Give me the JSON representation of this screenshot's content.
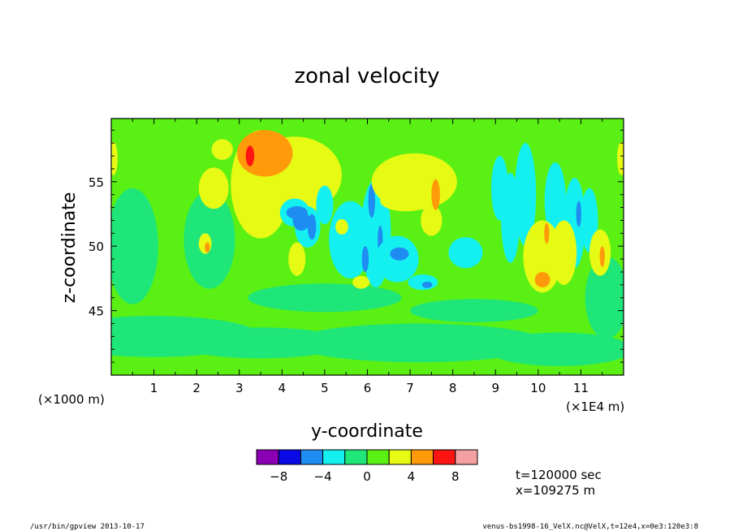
{
  "chart_data": {
    "type": "heatmap",
    "title": "zonal velocity",
    "xlabel": "y-coordinate",
    "ylabel": "z-coordinate",
    "x_unit_label": "(×1E4 m)",
    "y_unit_label": "(×1000 m)",
    "xlim": [
      0,
      12
    ],
    "ylim": [
      40,
      59.9
    ],
    "x_ticks": [
      1,
      2,
      3,
      4,
      5,
      6,
      7,
      8,
      9,
      10,
      11
    ],
    "x_tick_labels": [
      "1",
      "2",
      "3",
      "4",
      "5",
      "6",
      "7",
      "8",
      "9",
      "10",
      "11"
    ],
    "y_ticks": [
      45,
      50,
      55
    ],
    "y_tick_labels": [
      "45",
      "50",
      "55"
    ],
    "background_level": 0,
    "levels": [
      {
        "min": -10,
        "max": -8,
        "color": "#8b00b5"
      },
      {
        "min": -8,
        "max": -6,
        "color": "#0a0ae6"
      },
      {
        "min": -6,
        "max": -4,
        "color": "#1e8cf0"
      },
      {
        "min": -4,
        "max": -2,
        "color": "#14f0f0"
      },
      {
        "min": -2,
        "max": 0,
        "color": "#1ee678"
      },
      {
        "min": 0,
        "max": 2,
        "color": "#5af014"
      },
      {
        "min": 2,
        "max": 4,
        "color": "#e6fa14"
      },
      {
        "min": 4,
        "max": 6,
        "color": "#ff9b0a"
      },
      {
        "min": 6,
        "max": 8,
        "color": "#ff1414"
      },
      {
        "min": 8,
        "max": 10,
        "color": "#f5a0a0"
      }
    ],
    "colorbar_tick_labels": [
      "−8",
      "−4",
      "0",
      "4",
      "8"
    ],
    "colorbar_tick_values": [
      -8,
      -4,
      0,
      4,
      8
    ],
    "features": [
      {
        "x": 0.5,
        "y": 50,
        "rx": 0.6,
        "ry": 4.5,
        "v": -1
      },
      {
        "x": 1.0,
        "y": 43,
        "rx": 2.5,
        "ry": 1.6,
        "v": -1
      },
      {
        "x": 3.5,
        "y": 42.5,
        "rx": 2.0,
        "ry": 1.2,
        "v": -1
      },
      {
        "x": 7.2,
        "y": 42.5,
        "rx": 3.0,
        "ry": 1.5,
        "v": -1
      },
      {
        "x": 10.5,
        "y": 42,
        "rx": 1.7,
        "ry": 1.3,
        "v": -1
      },
      {
        "x": 5.0,
        "y": 46,
        "rx": 1.8,
        "ry": 1.1,
        "v": -1
      },
      {
        "x": 8.5,
        "y": 45,
        "rx": 1.5,
        "ry": 0.9,
        "v": -1
      },
      {
        "x": 2.3,
        "y": 50.5,
        "rx": 0.6,
        "ry": 3.8,
        "v": -1
      },
      {
        "x": 11.6,
        "y": 46,
        "rx": 0.5,
        "ry": 3.2,
        "v": -1
      },
      {
        "x": 2.4,
        "y": 54.5,
        "rx": 0.35,
        "ry": 1.6,
        "v": 3
      },
      {
        "x": 2.6,
        "y": 57.5,
        "rx": 0.25,
        "ry": 0.8,
        "v": 3
      },
      {
        "x": 3.5,
        "y": 54.8,
        "rx": 0.7,
        "ry": 4.2,
        "v": 3
      },
      {
        "x": 4.3,
        "y": 55.5,
        "rx": 1.1,
        "ry": 3.0,
        "v": 3
      },
      {
        "x": 3.6,
        "y": 57.2,
        "rx": 0.65,
        "ry": 1.8,
        "v": 5
      },
      {
        "x": 3.25,
        "y": 57.0,
        "rx": 0.1,
        "ry": 0.8,
        "v": 7
      },
      {
        "x": 4.3,
        "y": 52.6,
        "rx": 0.35,
        "ry": 1.1,
        "v": -3
      },
      {
        "x": 4.6,
        "y": 51.5,
        "rx": 0.3,
        "ry": 1.6,
        "v": -3
      },
      {
        "x": 4.45,
        "y": 52.0,
        "rx": 0.2,
        "ry": 0.8,
        "v": -5
      },
      {
        "x": 4.7,
        "y": 51.5,
        "rx": 0.1,
        "ry": 1.0,
        "v": -5
      },
      {
        "x": 4.35,
        "y": 52.6,
        "rx": 0.25,
        "ry": 0.5,
        "v": -5
      },
      {
        "x": 4.35,
        "y": 49,
        "rx": 0.2,
        "ry": 1.3,
        "v": 3
      },
      {
        "x": 5.6,
        "y": 50.5,
        "rx": 0.5,
        "ry": 3.0,
        "v": -3
      },
      {
        "x": 5.0,
        "y": 53.2,
        "rx": 0.2,
        "ry": 1.5,
        "v": -3
      },
      {
        "x": 6.2,
        "y": 51,
        "rx": 0.35,
        "ry": 4.2,
        "v": -3
      },
      {
        "x": 6.1,
        "y": 53.5,
        "rx": 0.08,
        "ry": 1.3,
        "v": -5
      },
      {
        "x": 5.95,
        "y": 49,
        "rx": 0.08,
        "ry": 1.0,
        "v": -5
      },
      {
        "x": 6.3,
        "y": 50.5,
        "rx": 0.06,
        "ry": 1.1,
        "v": -5
      },
      {
        "x": 6.7,
        "y": 49,
        "rx": 0.5,
        "ry": 1.8,
        "v": -3
      },
      {
        "x": 6.75,
        "y": 49.4,
        "rx": 0.22,
        "ry": 0.5,
        "v": -5
      },
      {
        "x": 5.85,
        "y": 47.2,
        "rx": 0.2,
        "ry": 0.5,
        "v": 3
      },
      {
        "x": 5.4,
        "y": 51.5,
        "rx": 0.15,
        "ry": 0.6,
        "v": 3
      },
      {
        "x": 7.3,
        "y": 47.2,
        "rx": 0.35,
        "ry": 0.6,
        "v": -3
      },
      {
        "x": 7.4,
        "y": 47.0,
        "rx": 0.12,
        "ry": 0.25,
        "v": -5
      },
      {
        "x": 7.1,
        "y": 55.0,
        "rx": 1.0,
        "ry": 2.2,
        "v": 3
      },
      {
        "x": 6.9,
        "y": 53.5,
        "rx": 0.6,
        "ry": 0.8,
        "v": 3
      },
      {
        "x": 7.5,
        "y": 52.0,
        "rx": 0.25,
        "ry": 1.2,
        "v": 3
      },
      {
        "x": 7.6,
        "y": 54.0,
        "rx": 0.1,
        "ry": 1.2,
        "v": 5
      },
      {
        "x": 8.3,
        "y": 49.5,
        "rx": 0.4,
        "ry": 1.2,
        "v": -3
      },
      {
        "x": 9.1,
        "y": 54.5,
        "rx": 0.2,
        "ry": 2.5,
        "v": -3
      },
      {
        "x": 9.35,
        "y": 52.2,
        "rx": 0.22,
        "ry": 3.5,
        "v": -3
      },
      {
        "x": 9.7,
        "y": 54.0,
        "rx": 0.25,
        "ry": 4.0,
        "v": -3
      },
      {
        "x": 10.4,
        "y": 53.5,
        "rx": 0.25,
        "ry": 3.0,
        "v": -3
      },
      {
        "x": 10.85,
        "y": 51.8,
        "rx": 0.25,
        "ry": 3.5,
        "v": -3
      },
      {
        "x": 11.2,
        "y": 52.0,
        "rx": 0.2,
        "ry": 2.5,
        "v": -3
      },
      {
        "x": 10.95,
        "y": 52.5,
        "rx": 0.06,
        "ry": 1.0,
        "v": -5
      },
      {
        "x": 10.1,
        "y": 49.2,
        "rx": 0.45,
        "ry": 2.8,
        "v": 3
      },
      {
        "x": 10.6,
        "y": 49.5,
        "rx": 0.3,
        "ry": 2.5,
        "v": 3
      },
      {
        "x": 11.45,
        "y": 49.5,
        "rx": 0.25,
        "ry": 1.8,
        "v": 3
      },
      {
        "x": 10.1,
        "y": 47.4,
        "rx": 0.18,
        "ry": 0.6,
        "v": 5
      },
      {
        "x": 10.2,
        "y": 51.0,
        "rx": 0.06,
        "ry": 0.8,
        "v": 5
      },
      {
        "x": 11.5,
        "y": 49.2,
        "rx": 0.06,
        "ry": 0.8,
        "v": 5
      },
      {
        "x": 2.2,
        "y": 50.2,
        "rx": 0.15,
        "ry": 0.8,
        "v": 3
      },
      {
        "x": 2.25,
        "y": 49.9,
        "rx": 0.06,
        "ry": 0.4,
        "v": 5
      },
      {
        "x": 11.95,
        "y": 56.8,
        "rx": 0.1,
        "ry": 1.3,
        "v": 3
      },
      {
        "x": 0.05,
        "y": 56.8,
        "rx": 0.1,
        "ry": 1.3,
        "v": 3
      }
    ]
  },
  "annotations": {
    "time": "t=120000 sec",
    "position": "x=109275 m"
  },
  "footer": {
    "left": "/usr/bin/gpview  2013-10-17",
    "right": "venus-bs1998-16_VelX.nc@VelX,t=12e4,x=0e3:120e3:8"
  }
}
